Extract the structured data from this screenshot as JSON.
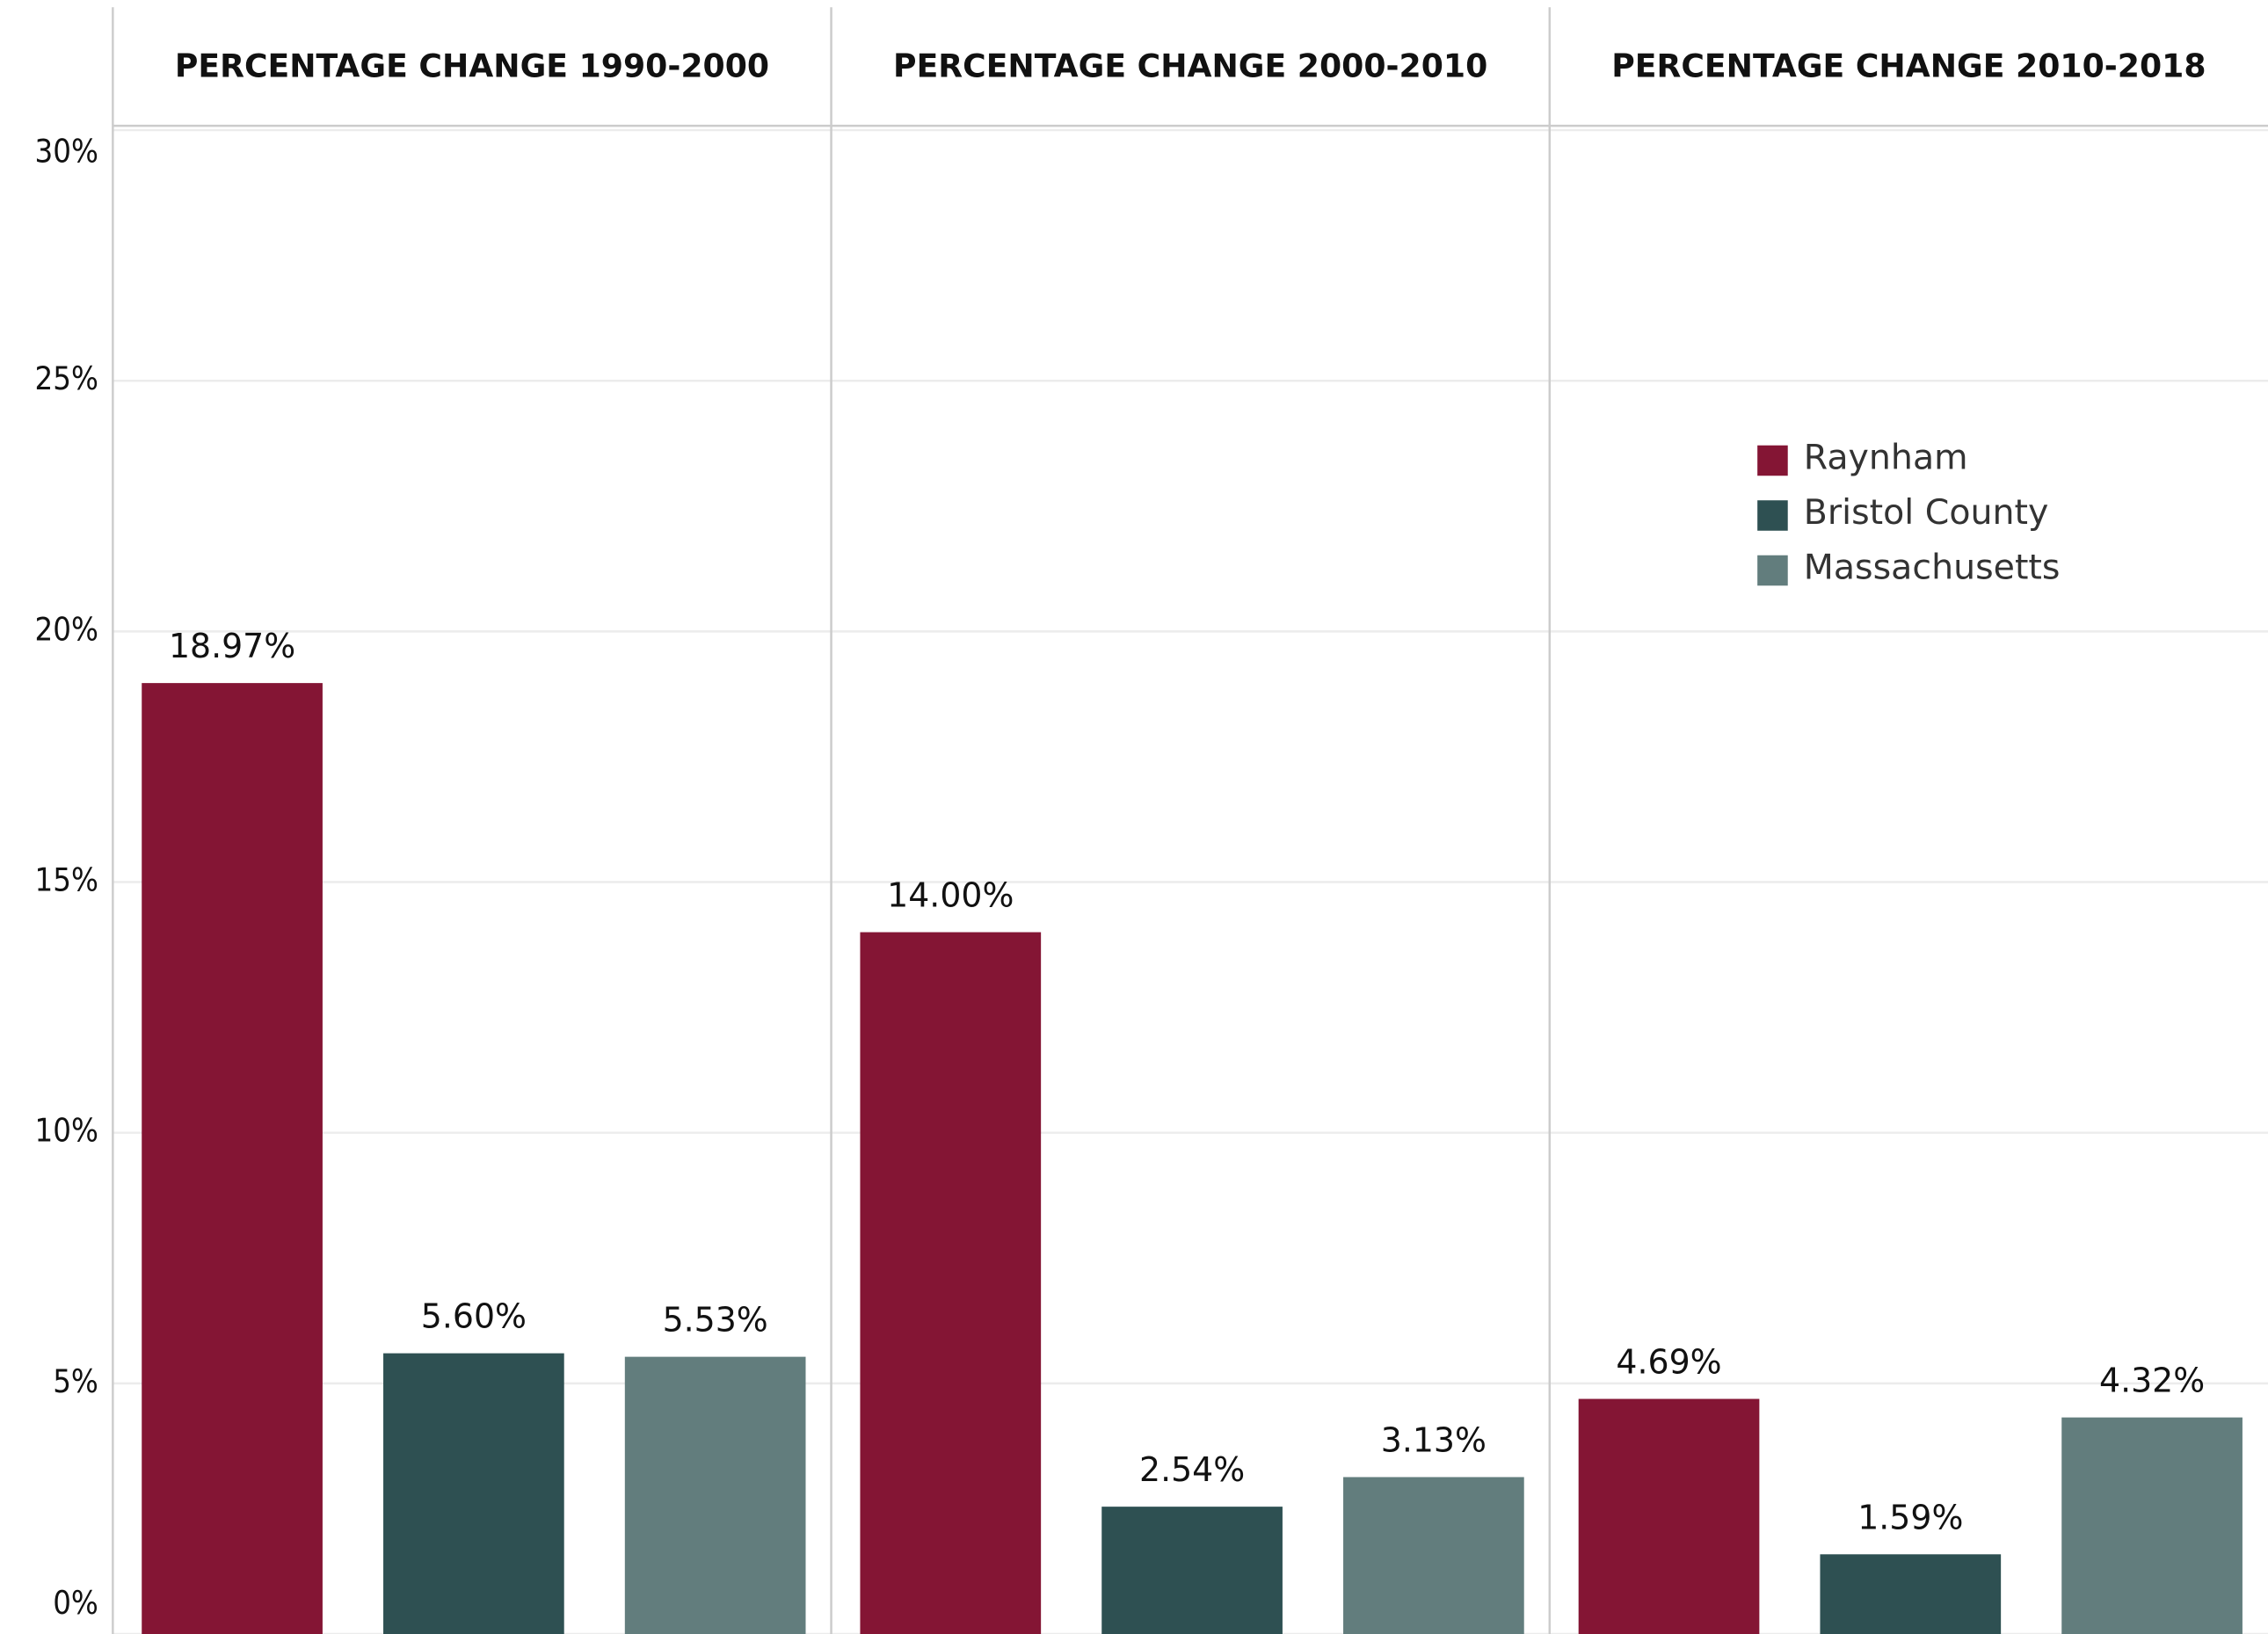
{
  "chart_data": {
    "type": "bar",
    "categories": [
      "PERCENTAGE CHANGE 1990-2000",
      "PERCENTAGE CHANGE 2000-2010",
      "PERCENTAGE CHANGE 2010-2018"
    ],
    "series": [
      {
        "name": "Raynham",
        "color": "#841534",
        "values": [
          18.97,
          14.0,
          4.69
        ],
        "value_labels": [
          "18.97%",
          "14.00%",
          "4.69%"
        ]
      },
      {
        "name": "Bristol County",
        "color": "#2e5052",
        "values": [
          5.6,
          2.54,
          1.59
        ],
        "value_labels": [
          "5.60%",
          "2.54%",
          "1.59%"
        ]
      },
      {
        "name": "Massachusetts",
        "color": "#627d7d",
        "values": [
          5.53,
          3.13,
          4.32
        ],
        "value_labels": [
          "5.53%",
          "3.13%",
          "4.32%"
        ]
      }
    ],
    "ylim": [
      0,
      30
    ],
    "yticks": [
      {
        "value": 0,
        "label": "0%"
      },
      {
        "value": 5,
        "label": "5%"
      },
      {
        "value": 10,
        "label": "10%"
      },
      {
        "value": 15,
        "label": "15%"
      },
      {
        "value": 20,
        "label": "20%"
      },
      {
        "value": 25,
        "label": "25%"
      },
      {
        "value": 30,
        "label": "30%"
      }
    ],
    "grid": true
  }
}
